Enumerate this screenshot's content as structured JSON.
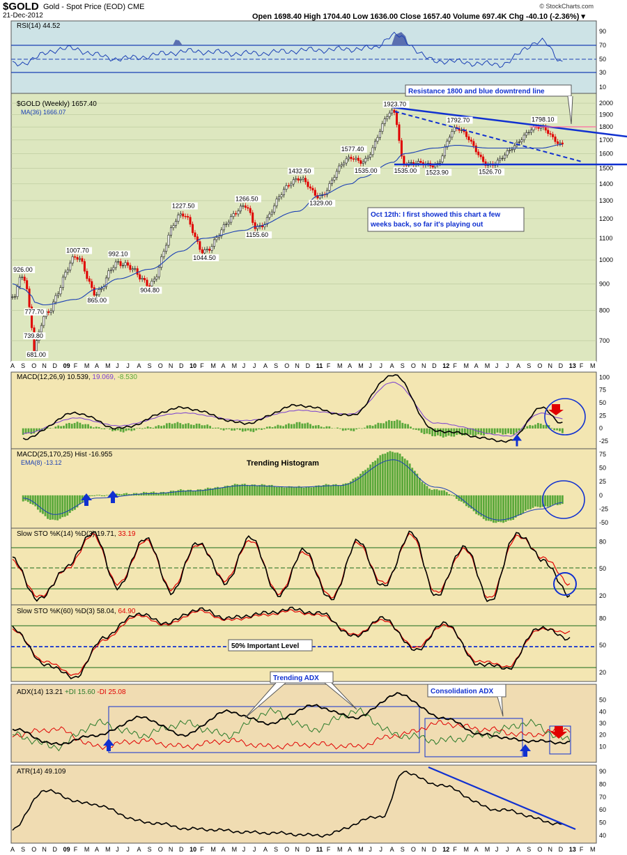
{
  "header": {
    "symbol": "$GOLD",
    "name": "Gold - Spot Price (EOD)",
    "exchange": "CME",
    "date": "21-Dec-2012",
    "ohlc_line": "Open 1698.40  High 1704.40  Low 1636.00  Close 1657.40  Volume 697.4K  Chg -40.10 (-2.36%) ▾",
    "credit": "© StockCharts.com"
  },
  "colors": {
    "up": "#1a1a1a",
    "down": "#e00000",
    "ma": "#1a3fb4",
    "trend": "#1030d0",
    "resistance": "#ff6aa0",
    "hist": "#5aa83a",
    "signal": "#7a3fd0",
    "panel_blue": "#cde3e6",
    "panel_green": "#dde7bf",
    "panel_yellow": "#f3e6b2",
    "panel_tan": "#f0dcb2"
  },
  "x_axis": {
    "labels_top": [
      "A",
      "S",
      "O",
      "N",
      "D",
      "09",
      "F",
      "M",
      "A",
      "M",
      "J",
      "J",
      "A",
      "S",
      "O",
      "N",
      "D",
      "10",
      "F",
      "M",
      "A",
      "M",
      "J",
      "J",
      "A",
      "S",
      "O",
      "N",
      "D",
      "11",
      "F",
      "M",
      "A",
      "M",
      "J",
      "J",
      "A",
      "S",
      "O",
      "N",
      "D",
      "12",
      "F",
      "M",
      "A",
      "M",
      "J",
      "J",
      "A",
      "S",
      "O",
      "N",
      "D",
      "13",
      "F",
      "M"
    ],
    "labels_bottom": [
      "A",
      "S",
      "O",
      "N",
      "D",
      "09",
      "F",
      "M",
      "A",
      "M",
      "J",
      "J",
      "A",
      "S",
      "O",
      "N",
      "D",
      "10",
      "F",
      "M",
      "A",
      "M",
      "J",
      "J",
      "A",
      "S",
      "O",
      "N",
      "D",
      "11",
      "F",
      "M",
      "A",
      "M",
      "J",
      "J",
      "A",
      "S",
      "O",
      "N",
      "D",
      "12",
      "F",
      "M",
      "A",
      "M",
      "J",
      "J",
      "A",
      "S",
      "O",
      "N",
      "D",
      "13",
      "F",
      "M"
    ]
  },
  "rsi": {
    "legend": "RSI(14) 44.52",
    "ticks": [
      "90",
      "70",
      "50",
      "30",
      "10"
    ]
  },
  "price": {
    "legend_main": "$GOLD (Weekly) 1657.40",
    "legend_ma": "MA(36) 1666.07",
    "ticks": [
      "2000",
      "1900",
      "1800",
      "1700",
      "1600",
      "1500",
      "1400",
      "1300",
      "1200",
      "1100",
      "1000",
      "900",
      "800",
      "700"
    ],
    "callout_resistance": "Resistance 1800 and blue downtrend line",
    "callout_oct": [
      "Oct 12th: I first showed this chart a few",
      "weeks back, so far it's playing out"
    ]
  },
  "macd1": {
    "legend_name": "MACD(12,26,9)",
    "legend_v1": "10.539,",
    "legend_v2": "19.069,",
    "legend_v3": "-8.530",
    "ticks": [
      "100",
      "75",
      "50",
      "25",
      "0",
      "-25"
    ]
  },
  "macd2": {
    "legend_name": "MACD(25,170,25) Hist -16.955",
    "legend_ema": "EMA(8) -13.12",
    "annotation": "Trending Histogram",
    "ticks": [
      "75",
      "50",
      "25",
      "0",
      "-25",
      "-50"
    ]
  },
  "sto14": {
    "legend_name": "Slow STO %K(14) %D(3) 19.71,",
    "legend_d": "33.19",
    "ticks": [
      "80",
      "50",
      "20"
    ]
  },
  "sto60": {
    "legend_name": "Slow STO %K(60) %D(3) 58.04,",
    "legend_d": "64.90",
    "annotation": "50% Important Level",
    "ticks": [
      "80",
      "50",
      "20"
    ]
  },
  "adx": {
    "legend_name": "ADX(14) 13.21",
    "legend_plus": "+DI 15.60",
    "legend_minus": "-DI 25.08",
    "callout_trend": "Trending ADX",
    "callout_consol": "Consolidation ADX",
    "ticks": [
      "50",
      "40",
      "30",
      "20",
      "10"
    ]
  },
  "atr": {
    "legend": "ATR(14) 49.109",
    "ticks": [
      "90",
      "80",
      "70",
      "60",
      "50",
      "40"
    ]
  },
  "chart_data": [
    {
      "type": "line",
      "title": "RSI(14) 44.52",
      "ylim": [
        0,
        100
      ],
      "reference_lines": [
        70,
        50,
        30
      ],
      "x": [
        "2008-08",
        "2009-01",
        "2009-06",
        "2010-01",
        "2010-06",
        "2011-01",
        "2011-06",
        "2011-08",
        "2011-12",
        "2012-06",
        "2012-10",
        "2012-12"
      ],
      "series": [
        {
          "name": "RSI(14)",
          "values": [
            40,
            62,
            48,
            58,
            55,
            60,
            62,
            80,
            45,
            40,
            72,
            44.52
          ]
        }
      ]
    },
    {
      "type": "line",
      "title": "$GOLD (Weekly) 1657.40",
      "ylabel": "",
      "ylim": [
        640,
        2050
      ],
      "scale": "log",
      "x": [
        "2008-08",
        "2008-09",
        "2008-10",
        "2008-10",
        "2008-11",
        "2009-02",
        "2009-04",
        "2009-06",
        "2009-09",
        "2009-12",
        "2010-02",
        "2010-06",
        "2010-07",
        "2010-11",
        "2011-01",
        "2011-04",
        "2011-05",
        "2011-08",
        "2011-09",
        "2011-12",
        "2012-02",
        "2012-05",
        "2012-10",
        "2012-12"
      ],
      "series": [
        {
          "name": "$GOLD (Weekly)",
          "values": [
            850,
            926.0,
            739.8,
            681.0,
            777.7,
            1007.7,
            865.0,
            992.1,
            904.8,
            1227.5,
            1044.5,
            1266.5,
            1155.6,
            1432.5,
            1329.0,
            1577.4,
            1535.0,
            1923.7,
            1535.0,
            1523.9,
            1792.7,
            1526.7,
            1798.1,
            1657.4
          ]
        },
        {
          "name": "MA(36)",
          "values": [
            900,
            880,
            850,
            830,
            820,
            840,
            880,
            920,
            960,
            1040,
            1100,
            1140,
            1160,
            1240,
            1330,
            1400,
            1440,
            1540,
            1600,
            1640,
            1660,
            1640,
            1640,
            1666.07
          ]
        }
      ],
      "annotations": [
        "Resistance 1800 and blue downtrend line",
        "Oct 12th: I first showed this chart a few weeks back, so far it's playing out"
      ],
      "reference_lines": [
        1800,
        1525
      ]
    },
    {
      "type": "line",
      "title": "MACD(12,26,9) 10.539, 19.069, -8.530",
      "ylim": [
        -40,
        110
      ],
      "x": [
        "2008-09",
        "2009-02",
        "2009-06",
        "2009-12",
        "2010-06",
        "2010-11",
        "2011-04",
        "2011-08",
        "2011-12",
        "2012-07",
        "2012-10",
        "2012-12"
      ],
      "series": [
        {
          "name": "MACD",
          "values": [
            -20,
            30,
            0,
            40,
            10,
            45,
            25,
            105,
            -5,
            -25,
            40,
            10.539
          ]
        },
        {
          "name": "Signal",
          "values": [
            -10,
            20,
            5,
            30,
            15,
            35,
            28,
            90,
            10,
            -15,
            30,
            19.069
          ]
        },
        {
          "name": "Histogram",
          "values": [
            -10,
            10,
            -5,
            10,
            -5,
            10,
            -3,
            15,
            -15,
            -10,
            10,
            -8.53
          ]
        }
      ]
    },
    {
      "type": "bar",
      "title": "MACD(25,170,25) Hist -16.955",
      "ylim": [
        -60,
        85
      ],
      "x": [
        "2008-09",
        "2008-12",
        "2009-04",
        "2009-09",
        "2010-01",
        "2010-06",
        "2010-11",
        "2011-03",
        "2011-08",
        "2011-12",
        "2012-06",
        "2012-10",
        "2012-12"
      ],
      "series": [
        {
          "name": "Hist",
          "values": [
            -10,
            -45,
            0,
            5,
            10,
            20,
            15,
            20,
            80,
            10,
            -50,
            -20,
            -16.955
          ]
        },
        {
          "name": "EMA(8)",
          "values": [
            -5,
            -35,
            -5,
            3,
            8,
            18,
            15,
            18,
            65,
            15,
            -45,
            -25,
            -13.12
          ]
        }
      ],
      "annotations": [
        "Trending Histogram"
      ]
    },
    {
      "type": "line",
      "title": "Slow STO %K(14) %D(3) 19.71, 33.19",
      "ylim": [
        10,
        95
      ],
      "reference_lines": [
        80,
        50,
        20
      ],
      "series": [
        {
          "name": "%K(14)",
          "values": [
            60,
            15,
            50,
            90,
            30,
            85,
            25,
            80,
            35,
            85,
            20,
            70,
            15,
            80,
            30,
            90,
            20,
            75,
            15,
            90,
            60,
            19.71
          ]
        },
        {
          "name": "%D(3)",
          "values": [
            58,
            18,
            48,
            87,
            33,
            82,
            28,
            78,
            38,
            82,
            23,
            68,
            18,
            78,
            33,
            87,
            23,
            72,
            18,
            87,
            63,
            33.19
          ]
        }
      ]
    },
    {
      "type": "line",
      "title": "Slow STO %K(60) %D(3) 58.04, 64.90",
      "ylim": [
        10,
        95
      ],
      "reference_lines": [
        80,
        50,
        20
      ],
      "series": [
        {
          "name": "%K(60)",
          "values": [
            70,
            30,
            15,
            60,
            85,
            75,
            90,
            80,
            85,
            90,
            85,
            60,
            80,
            45,
            75,
            30,
            25,
            70,
            58.04
          ]
        },
        {
          "name": "%D(3)",
          "values": [
            68,
            33,
            18,
            57,
            83,
            73,
            88,
            78,
            83,
            88,
            83,
            62,
            78,
            48,
            73,
            33,
            27,
            68,
            64.9
          ]
        }
      ],
      "annotations": [
        "50% Important Level"
      ]
    },
    {
      "type": "line",
      "title": "ADX(14) 13.21 +DI 15.60 -DI 25.08",
      "ylim": [
        0,
        60
      ],
      "series": [
        {
          "name": "ADX(14)",
          "values": [
            25,
            12,
            20,
            35,
            20,
            40,
            30,
            45,
            35,
            55,
            35,
            20,
            15,
            13.21
          ]
        },
        {
          "name": "+DI",
          "values": [
            20,
            10,
            30,
            20,
            30,
            20,
            40,
            25,
            40,
            20,
            15,
            20,
            30,
            15.6
          ]
        },
        {
          "name": "-DI",
          "values": [
            20,
            25,
            10,
            15,
            10,
            15,
            10,
            12,
            10,
            20,
            30,
            25,
            20,
            25.08
          ]
        }
      ],
      "annotations": [
        "Trending ADX",
        "Consolidation ADX"
      ]
    },
    {
      "type": "line",
      "title": "ATR(14) 49.109",
      "ylim": [
        35,
        95
      ],
      "x": [
        "2008-08",
        "2008-11",
        "2009-03",
        "2009-09",
        "2010-01",
        "2010-08",
        "2011-01",
        "2011-07",
        "2011-09",
        "2011-12",
        "2012-06",
        "2012-12"
      ],
      "series": [
        {
          "name": "ATR(14)",
          "values": [
            45,
            75,
            65,
            50,
            45,
            42,
            40,
            55,
            90,
            80,
            60,
            49.109
          ]
        }
      ]
    }
  ]
}
